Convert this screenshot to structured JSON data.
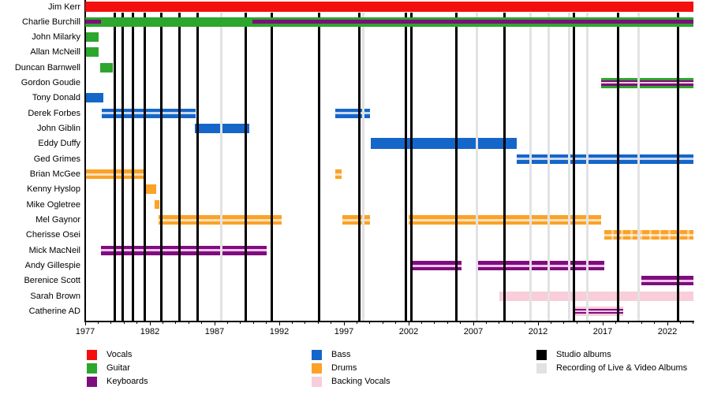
{
  "chart_data": {
    "type": "gantt-timeline",
    "description": "Band membership timeline with instrument roles and album release markers",
    "axis": {
      "start_year": 1977,
      "end_year": 2024,
      "labeled_ticks": [
        1977,
        1982,
        1987,
        1992,
        1997,
        2002,
        2007,
        2012,
        2017,
        2022
      ],
      "minor_tick_every_years": 1,
      "orientation": "horizontal"
    },
    "colors": {
      "vocals": "#f40f0f",
      "guitar": "#2ca62c",
      "keyboards": "#7d0e7d",
      "bass": "#1566c9",
      "drums": "#fba227",
      "backing_vocals": "#f9cdd9",
      "bass_light": "#c9d9f0",
      "drums_light": "#fde0bb",
      "keyboards_light": "#f8c0ee",
      "backing_vocals_light": "#fdeef3",
      "studio_album": "#000000",
      "live_album": "#e2e2e2"
    },
    "members": [
      {
        "name": "Jim Kerr",
        "bars": [
          {
            "role": "vocals",
            "start": 1977,
            "end": 2024,
            "style": "solid",
            "h": 13,
            "front": true
          }
        ]
      },
      {
        "name": "Charlie Burchill",
        "bars": [
          {
            "role": "guitar",
            "start": 1977,
            "end": 2024,
            "style": "solid",
            "h": 12,
            "front": true
          },
          {
            "role": "keyboards",
            "start": 1977,
            "end": 1978.2,
            "style": "solid",
            "h": 5,
            "front": true
          },
          {
            "role": "keyboards",
            "start": 1989.9,
            "end": 2024,
            "style": "solid",
            "h": 5,
            "front": true
          }
        ]
      },
      {
        "name": "John Milarky",
        "bars": [
          {
            "role": "guitar",
            "start": 1977,
            "end": 1978.05,
            "style": "solid"
          }
        ]
      },
      {
        "name": "Allan McNeill",
        "bars": [
          {
            "role": "guitar",
            "start": 1977,
            "end": 1978.05,
            "style": "solid"
          }
        ]
      },
      {
        "name": "Duncan Barnwell",
        "bars": [
          {
            "role": "guitar",
            "start": 1978.15,
            "end": 1979.15,
            "style": "solid"
          }
        ]
      },
      {
        "name": "Gordon Goudie",
        "bars": [
          {
            "start": 2016.9,
            "end": 2024,
            "stripes": [
              "guitar",
              "keyboards",
              "backing_vocals",
              "keyboards",
              "guitar"
            ],
            "weights": [
              3,
              2.5,
              2,
              2.5,
              3
            ],
            "h": 13
          }
        ]
      },
      {
        "name": "Tony Donald",
        "bars": [
          {
            "role": "bass",
            "start": 1977,
            "end": 1978.4,
            "style": "solid"
          }
        ]
      },
      {
        "name": "Derek Forbes",
        "bars": [
          {
            "role": "bass",
            "start": 1978.3,
            "end": 1985.55,
            "style": "striped"
          },
          {
            "role": "bass",
            "start": 1996.3,
            "end": 1999.0,
            "style": "striped"
          }
        ]
      },
      {
        "name": "John Giblin",
        "bars": [
          {
            "role": "bass",
            "start": 1985.5,
            "end": 1989.7,
            "style": "solid"
          }
        ]
      },
      {
        "name": "Eddy Duffy",
        "bars": [
          {
            "role": "bass",
            "start": 1999.05,
            "end": 2010.35,
            "style": "solid",
            "h": 14
          }
        ]
      },
      {
        "name": "Ged Grimes",
        "bars": [
          {
            "role": "bass",
            "start": 2010.35,
            "end": 2024,
            "style": "striped"
          }
        ]
      },
      {
        "name": "Brian McGee",
        "bars": [
          {
            "role": "drums",
            "start": 1977,
            "end": 1981.6,
            "style": "striped"
          },
          {
            "role": "drums",
            "start": 1996.3,
            "end": 1996.8,
            "style": "striped"
          }
        ]
      },
      {
        "name": "Kenny Hyslop",
        "bars": [
          {
            "role": "drums",
            "start": 1981.6,
            "end": 1982.5,
            "style": "solid"
          }
        ]
      },
      {
        "name": "Mike Ogletree",
        "bars": [
          {
            "role": "drums",
            "start": 1982.35,
            "end": 1982.75,
            "style": "solid",
            "h": 11
          }
        ]
      },
      {
        "name": "Mel Gaynor",
        "bars": [
          {
            "role": "drums",
            "start": 1982.7,
            "end": 1992.2,
            "style": "striped"
          },
          {
            "role": "drums",
            "start": 1996.9,
            "end": 1999.0,
            "style": "striped"
          },
          {
            "role": "drums",
            "start": 2002.0,
            "end": 2016.9,
            "style": "striped"
          }
        ]
      },
      {
        "name": "Cherisse Osei",
        "bars": [
          {
            "role": "drums",
            "start": 2017.1,
            "end": 2024,
            "style": "striped",
            "dashed": true
          }
        ]
      },
      {
        "name": "Mick MacNeil",
        "bars": [
          {
            "role": "keyboards",
            "start": 1978.2,
            "end": 1991.0,
            "style": "striped"
          }
        ]
      },
      {
        "name": "Andy Gillespie",
        "bars": [
          {
            "role": "keyboards",
            "start": 2002.1,
            "end": 2006.1,
            "style": "striped"
          },
          {
            "role": "keyboards",
            "start": 2007.2,
            "end": 2017.1,
            "style": "striped"
          }
        ]
      },
      {
        "name": "Berenice Scott",
        "bars": [
          {
            "role": "keyboards",
            "start": 2020.0,
            "end": 2024,
            "style": "striped"
          }
        ]
      },
      {
        "name": "Sarah Brown",
        "bars": [
          {
            "role": "backing_vocals",
            "start": 2009.0,
            "end": 2024,
            "style": "solid"
          }
        ]
      },
      {
        "name": "Catherine AD",
        "bars": [
          {
            "start": 2014.7,
            "end": 2018.6,
            "stripes": [
              "backing_vocals",
              "keyboards",
              "keyboards_light",
              "keyboards",
              "backing_vocals"
            ],
            "weights": [
              3,
              2.5,
              2,
              2.5,
              3
            ],
            "h": 12
          }
        ]
      }
    ],
    "albums": {
      "studio_years": [
        1979.3,
        1979.9,
        1980.7,
        1981.6,
        1982.9,
        1984.3,
        1985.7,
        1989.4,
        1991.4,
        1995.1,
        1998.2,
        2001.8,
        2002.2,
        2005.7,
        2009.4,
        2014.8,
        2018.2,
        2022.8
      ],
      "live_years": [
        1987.5,
        1998.5,
        2007.3,
        2011.4,
        2012.8,
        2014.4,
        2015.8,
        2019.8
      ]
    },
    "legend": {
      "columns": [
        {
          "items": [
            {
              "swatch": "vocals",
              "label": "Vocals"
            },
            {
              "swatch": "guitar",
              "label": "Guitar"
            },
            {
              "swatch": "keyboards",
              "label": "Keyboards"
            }
          ]
        },
        {
          "items": [
            {
              "swatch": "bass",
              "label": "Bass"
            },
            {
              "swatch": "drums",
              "label": "Drums"
            },
            {
              "swatch": "backing_vocals",
              "label": "Backing Vocals"
            }
          ]
        },
        {
          "items": [
            {
              "swatch": "studio_album",
              "label": "Studio albums"
            },
            {
              "swatch": "live_album",
              "label": "Recording of Live & Video Albums"
            }
          ]
        }
      ]
    }
  }
}
